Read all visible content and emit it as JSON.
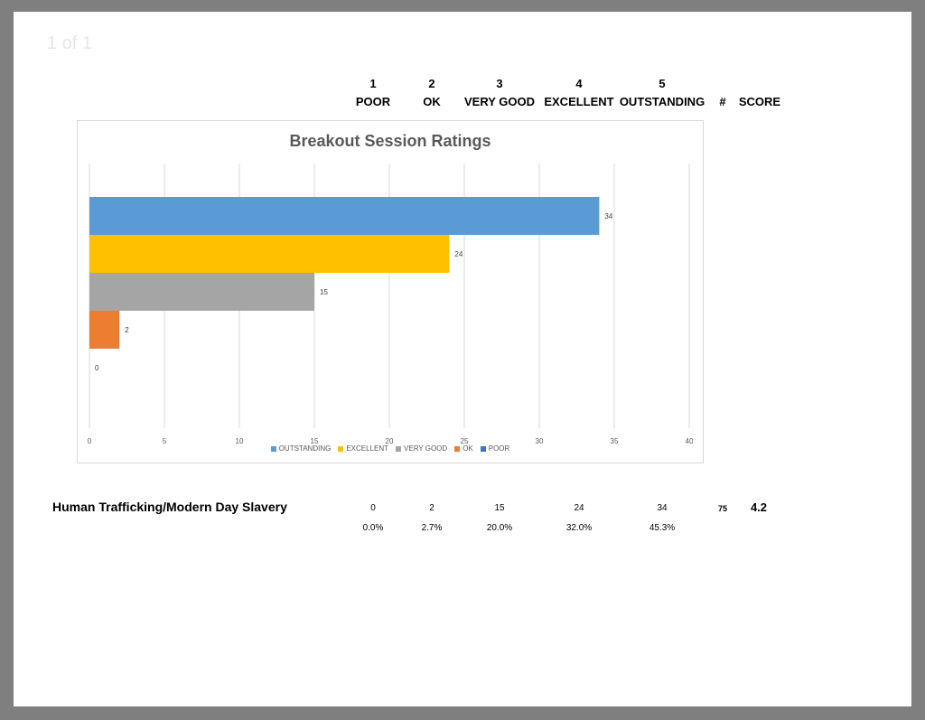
{
  "viewer": {
    "page_indicator": "1 of 1"
  },
  "table_header": {
    "columns": [
      {
        "number": "1",
        "label": "POOR"
      },
      {
        "number": "2",
        "label": "OK"
      },
      {
        "number": "3",
        "label": "VERY GOOD"
      },
      {
        "number": "4",
        "label": "EXCELLENT"
      },
      {
        "number": "5",
        "label": "OUTSTANDING"
      }
    ],
    "count_label": "#",
    "score_label": "SCORE"
  },
  "session": {
    "name": "Human Trafficking/Modern Day Slavery",
    "counts": [
      "0",
      "2",
      "15",
      "24",
      "34"
    ],
    "percents": [
      "0.0%",
      "2.7%",
      "20.0%",
      "32.0%",
      "45.3%"
    ],
    "total": "75",
    "score": "4.2"
  },
  "chart_data": {
    "type": "bar",
    "orientation": "horizontal",
    "title": "Breakout Session Ratings",
    "xlim": [
      0,
      40
    ],
    "x_ticks": [
      "0",
      "5",
      "10",
      "15",
      "20",
      "25",
      "30",
      "35",
      "40"
    ],
    "grid": true,
    "legend_position": "bottom",
    "series": [
      {
        "name": "OUTSTANDING",
        "value": 34,
        "label": "34",
        "color": "#5b9bd5"
      },
      {
        "name": "EXCELLENT",
        "value": 24,
        "label": "24",
        "color": "#ffc000"
      },
      {
        "name": "VERY GOOD",
        "value": 15,
        "label": "15",
        "color": "#a5a5a5"
      },
      {
        "name": "OK",
        "value": 2,
        "label": "2",
        "color": "#ed7d31"
      },
      {
        "name": "POOR",
        "value": 0,
        "label": "0",
        "color": "#4472c4"
      }
    ]
  }
}
